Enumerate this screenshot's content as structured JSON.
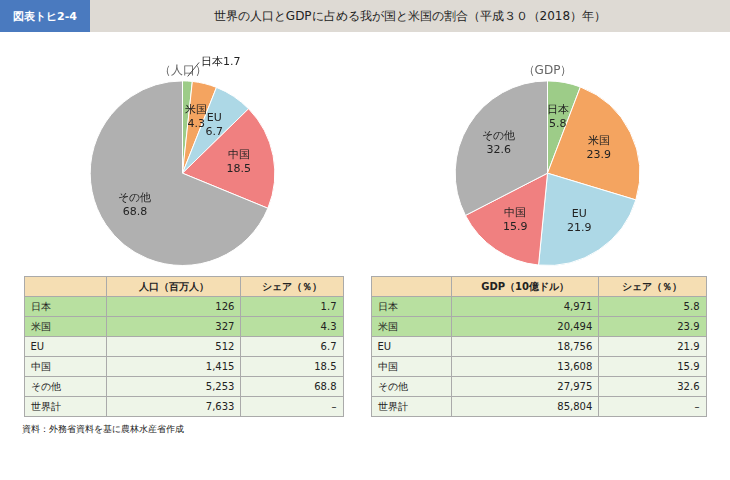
{
  "title_label": "図表トヒ2-4",
  "title": "世界の人口とGDPに占める我が国と米国の割合（平成３０（2018）年）",
  "chart_data": [
    {
      "type": "pie",
      "title": "（人口）",
      "categories": [
        "日本",
        "米国",
        "EU",
        "中国",
        "その他"
      ],
      "values": [
        1.7,
        4.3,
        6.7,
        18.5,
        68.8
      ],
      "colors": [
        "#9dcc88",
        "#f4a460",
        "#add8e6",
        "#f08080",
        "#b0b0b0"
      ],
      "data_labels": true
    },
    {
      "type": "pie",
      "title": "（GDP）",
      "categories": [
        "日本",
        "米国",
        "EU",
        "中国",
        "その他"
      ],
      "values": [
        5.8,
        23.9,
        21.9,
        15.9,
        32.6
      ],
      "colors": [
        "#9dcc88",
        "#f4a460",
        "#add8e6",
        "#f08080",
        "#b0b0b0"
      ],
      "data_labels": true
    }
  ],
  "tables": [
    {
      "header": [
        null,
        "人口（百万人）",
        "シェア（％）"
      ],
      "rows": [
        [
          "日本",
          "126",
          "1.7"
        ],
        [
          "米国",
          "327",
          "4.3"
        ],
        [
          "EU",
          "512",
          "6.7"
        ],
        [
          "中国",
          "1,415",
          "18.5"
        ],
        [
          "その他",
          "5,253",
          "68.8"
        ],
        [
          "世界計",
          "7,633",
          "–"
        ]
      ]
    },
    {
      "header": [
        null,
        "GDP（10億ドル）",
        "シェア（％）"
      ],
      "rows": [
        [
          "日本",
          "4,971",
          "5.8"
        ],
        [
          "米国",
          "20,494",
          "23.9"
        ],
        [
          "EU",
          "18,756",
          "21.9"
        ],
        [
          "中国",
          "13,608",
          "15.9"
        ],
        [
          "その他",
          "27,975",
          "32.6"
        ],
        [
          "世界計",
          "85,804",
          "–"
        ]
      ]
    }
  ],
  "source": "資料：外務省資料を基に農林水産省作成"
}
